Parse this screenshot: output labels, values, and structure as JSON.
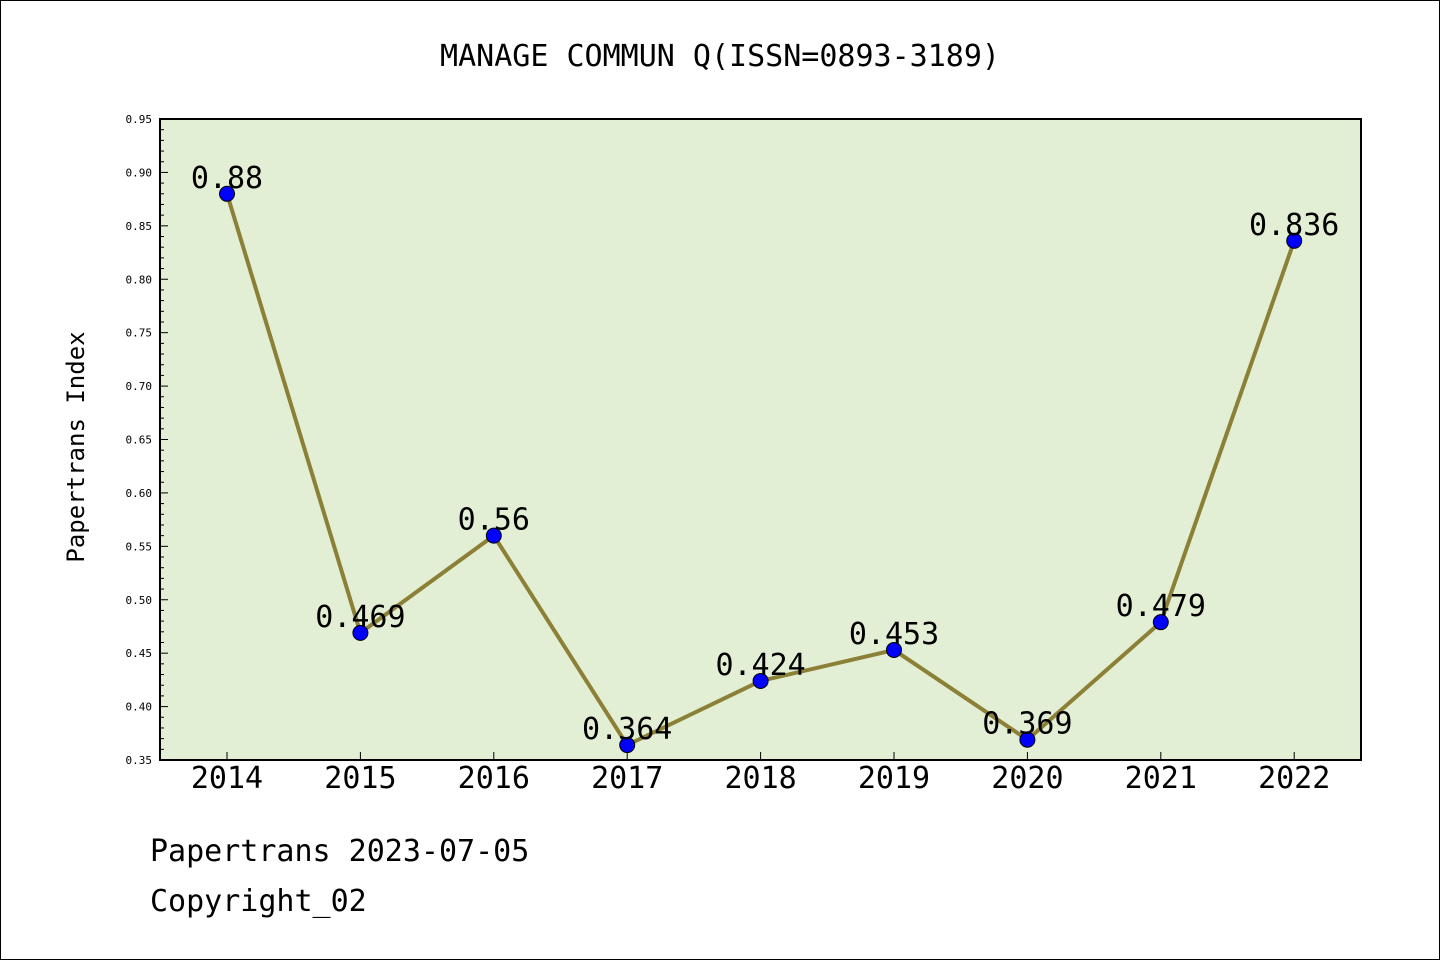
{
  "chart_data": {
    "type": "line",
    "title": "MANAGE COMMUN Q(ISSN=0893-3189)",
    "xlabel": "",
    "ylabel": "Papertrans Index",
    "categories": [
      "2014",
      "2015",
      "2016",
      "2017",
      "2018",
      "2019",
      "2020",
      "2021",
      "2022"
    ],
    "values": [
      0.88,
      0.469,
      0.56,
      0.364,
      0.424,
      0.453,
      0.369,
      0.479,
      0.836
    ],
    "data_labels": [
      "0.88",
      "0.469",
      "0.56",
      "0.364",
      "0.424",
      "0.453",
      "0.369",
      "0.479",
      "0.836"
    ],
    "ylim": [
      0.35,
      0.95
    ],
    "yticks": [
      "0.35",
      "0.40",
      "0.45",
      "0.50",
      "0.55",
      "0.60",
      "0.65",
      "0.70",
      "0.75",
      "0.80",
      "0.85",
      "0.90",
      "0.95"
    ],
    "grid": false,
    "legend": "none",
    "colors": {
      "plot_background": "#e2efd5",
      "line": "#8b8035",
      "marker": "#0000ff"
    }
  },
  "footer": {
    "date_line": "Papertrans 2023-07-05",
    "copyright": "Copyright_02"
  }
}
